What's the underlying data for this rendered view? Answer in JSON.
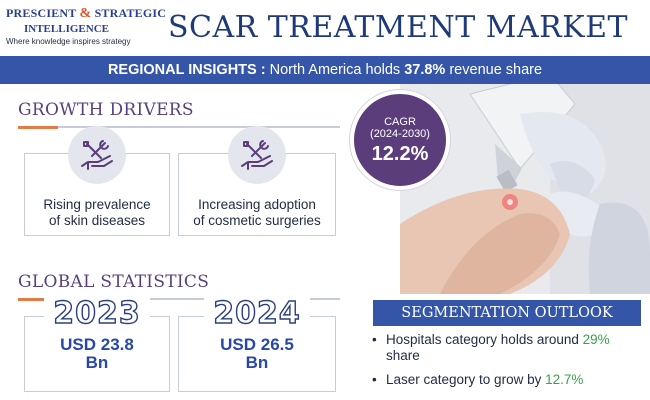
{
  "header": {
    "logo_line1_a": "PRESCIENT",
    "logo_amp": "&",
    "logo_line1_b": "STRATEGIC",
    "logo_line2": "INTELLIGENCE",
    "logo_tagline": "Where knowledge inspires strategy",
    "title": "SCAR TREATMENT MARKET"
  },
  "band": {
    "label": "REGIONAL INSIGHTS :",
    "text_before": " North America holds ",
    "highlight": "37.8%",
    "text_after": " revenue share"
  },
  "growth_drivers": {
    "heading": "GROWTH DRIVERS",
    "cards": [
      {
        "line1": "Rising prevalence",
        "line2": "of skin diseases",
        "icon": "tools-hand-icon"
      },
      {
        "line1": "Increasing adoption",
        "line2": "of cosmetic surgeries",
        "icon": "tools-hand-icon"
      }
    ]
  },
  "cagr": {
    "label": "CAGR",
    "period": "(2024-2030)",
    "value": "12.2%"
  },
  "global_statistics": {
    "heading": "GLOBAL STATISTICS",
    "stats": [
      {
        "year": "2023",
        "value_line1": "USD 23.8",
        "value_line2": "Bn"
      },
      {
        "year": "2024",
        "value_line1": "USD 26.5",
        "value_line2": "Bn"
      }
    ]
  },
  "segmentation": {
    "heading": "SEGMENTATION OUTLOOK",
    "items": [
      {
        "before": "Hospitals category holds around ",
        "highlight": "29%",
        "after": " share"
      },
      {
        "before": "Laser category to grow by ",
        "highlight": "12.7%",
        "after": ""
      }
    ]
  },
  "colors": {
    "accent_blue": "#3455a8",
    "title_blue": "#1e3a78",
    "purple": "#5b3d7c",
    "highlight_green": "#3aa14a",
    "dash_orange": "#e27b46"
  }
}
